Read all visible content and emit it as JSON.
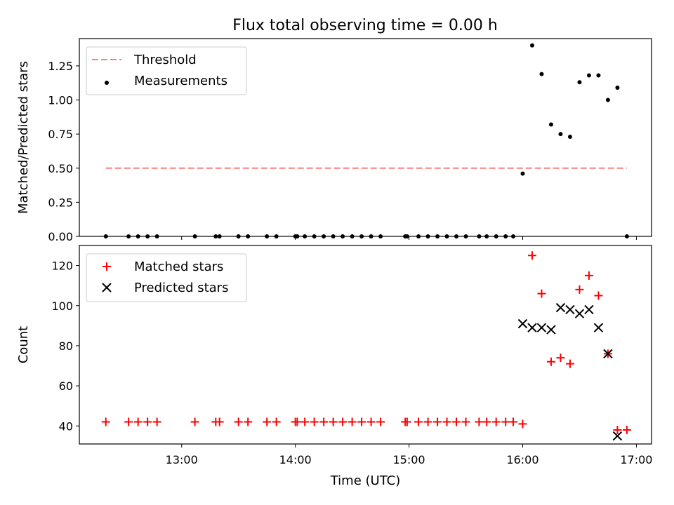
{
  "title": "Flux total observing time = 0.00 h",
  "chart_data": [
    {
      "type": "scatter",
      "ylabel": "Matched/Predicted stars",
      "xlabel": "",
      "ylim": [
        0,
        1.45
      ],
      "xlim": [
        "12:06",
        "17:08"
      ],
      "yticks": [
        "0.00",
        "0.25",
        "0.50",
        "0.75",
        "1.00",
        "1.25"
      ],
      "legend_position": "top-left",
      "threshold": {
        "name": "Threshold",
        "style": "dashed",
        "color": "#ff7f7f",
        "y": 0.5,
        "x_range": [
          "12:20",
          "16:55"
        ]
      },
      "series": [
        {
          "name": "Measurements",
          "marker": "dot",
          "color": "#000000",
          "points": [
            {
              "x": "12:20",
              "y": 0
            },
            {
              "x": "12:32",
              "y": 0
            },
            {
              "x": "12:37",
              "y": 0
            },
            {
              "x": "12:42",
              "y": 0
            },
            {
              "x": "12:47",
              "y": 0
            },
            {
              "x": "13:07",
              "y": 0
            },
            {
              "x": "13:18",
              "y": 0
            },
            {
              "x": "13:20",
              "y": 0
            },
            {
              "x": "13:30",
              "y": 0
            },
            {
              "x": "13:35",
              "y": 0
            },
            {
              "x": "13:45",
              "y": 0
            },
            {
              "x": "13:50",
              "y": 0
            },
            {
              "x": "14:00",
              "y": 0
            },
            {
              "x": "14:01",
              "y": 0
            },
            {
              "x": "14:05",
              "y": 0
            },
            {
              "x": "14:10",
              "y": 0
            },
            {
              "x": "14:15",
              "y": 0
            },
            {
              "x": "14:20",
              "y": 0
            },
            {
              "x": "14:25",
              "y": 0
            },
            {
              "x": "14:30",
              "y": 0
            },
            {
              "x": "14:35",
              "y": 0
            },
            {
              "x": "14:40",
              "y": 0
            },
            {
              "x": "14:45",
              "y": 0
            },
            {
              "x": "14:58",
              "y": 0
            },
            {
              "x": "14:59",
              "y": 0
            },
            {
              "x": "15:05",
              "y": 0
            },
            {
              "x": "15:10",
              "y": 0
            },
            {
              "x": "15:15",
              "y": 0
            },
            {
              "x": "15:20",
              "y": 0
            },
            {
              "x": "15:25",
              "y": 0
            },
            {
              "x": "15:30",
              "y": 0
            },
            {
              "x": "15:37",
              "y": 0
            },
            {
              "x": "15:41",
              "y": 0
            },
            {
              "x": "15:46",
              "y": 0
            },
            {
              "x": "15:51",
              "y": 0
            },
            {
              "x": "15:55",
              "y": 0
            },
            {
              "x": "16:00",
              "y": 0.46
            },
            {
              "x": "16:05",
              "y": 1.4
            },
            {
              "x": "16:10",
              "y": 1.19
            },
            {
              "x": "16:15",
              "y": 0.82
            },
            {
              "x": "16:20",
              "y": 0.75
            },
            {
              "x": "16:25",
              "y": 0.73
            },
            {
              "x": "16:30",
              "y": 1.13
            },
            {
              "x": "16:35",
              "y": 1.18
            },
            {
              "x": "16:40",
              "y": 1.18
            },
            {
              "x": "16:45",
              "y": 1.0
            },
            {
              "x": "16:50",
              "y": 1.09
            },
            {
              "x": "16:55",
              "y": 0
            }
          ]
        }
      ]
    },
    {
      "type": "scatter",
      "ylabel": "Count",
      "xlabel": "Time (UTC)",
      "ylim": [
        31,
        130
      ],
      "xlim": [
        "12:06",
        "17:08"
      ],
      "yticks": [
        "40",
        "60",
        "80",
        "100",
        "120"
      ],
      "xticks": [
        "13:00",
        "14:00",
        "15:00",
        "16:00",
        "17:00"
      ],
      "legend_position": "top-left",
      "series": [
        {
          "name": "Matched stars",
          "marker": "plus",
          "color": "#ff0000",
          "points": [
            {
              "x": "12:20",
              "y": 42
            },
            {
              "x": "12:32",
              "y": 42
            },
            {
              "x": "12:37",
              "y": 42
            },
            {
              "x": "12:42",
              "y": 42
            },
            {
              "x": "12:47",
              "y": 42
            },
            {
              "x": "13:07",
              "y": 42
            },
            {
              "x": "13:18",
              "y": 42
            },
            {
              "x": "13:20",
              "y": 42
            },
            {
              "x": "13:30",
              "y": 42
            },
            {
              "x": "13:35",
              "y": 42
            },
            {
              "x": "13:45",
              "y": 42
            },
            {
              "x": "13:50",
              "y": 42
            },
            {
              "x": "14:00",
              "y": 42
            },
            {
              "x": "14:01",
              "y": 42
            },
            {
              "x": "14:05",
              "y": 42
            },
            {
              "x": "14:10",
              "y": 42
            },
            {
              "x": "14:15",
              "y": 42
            },
            {
              "x": "14:20",
              "y": 42
            },
            {
              "x": "14:25",
              "y": 42
            },
            {
              "x": "14:30",
              "y": 42
            },
            {
              "x": "14:35",
              "y": 42
            },
            {
              "x": "14:40",
              "y": 42
            },
            {
              "x": "14:45",
              "y": 42
            },
            {
              "x": "14:58",
              "y": 42
            },
            {
              "x": "14:59",
              "y": 42
            },
            {
              "x": "15:05",
              "y": 42
            },
            {
              "x": "15:10",
              "y": 42
            },
            {
              "x": "15:15",
              "y": 42
            },
            {
              "x": "15:20",
              "y": 42
            },
            {
              "x": "15:25",
              "y": 42
            },
            {
              "x": "15:30",
              "y": 42
            },
            {
              "x": "15:37",
              "y": 42
            },
            {
              "x": "15:41",
              "y": 42
            },
            {
              "x": "15:46",
              "y": 42
            },
            {
              "x": "15:51",
              "y": 42
            },
            {
              "x": "15:55",
              "y": 42
            },
            {
              "x": "16:00",
              "y": 41
            },
            {
              "x": "16:05",
              "y": 125
            },
            {
              "x": "16:10",
              "y": 106
            },
            {
              "x": "16:15",
              "y": 72
            },
            {
              "x": "16:20",
              "y": 74
            },
            {
              "x": "16:25",
              "y": 71
            },
            {
              "x": "16:30",
              "y": 108
            },
            {
              "x": "16:35",
              "y": 115
            },
            {
              "x": "16:40",
              "y": 105
            },
            {
              "x": "16:45",
              "y": 76
            },
            {
              "x": "16:50",
              "y": 38
            },
            {
              "x": "16:55",
              "y": 38
            }
          ]
        },
        {
          "name": "Predicted stars",
          "marker": "x",
          "color": "#000000",
          "points": [
            {
              "x": "16:00",
              "y": 91
            },
            {
              "x": "16:05",
              "y": 89
            },
            {
              "x": "16:10",
              "y": 89
            },
            {
              "x": "16:15",
              "y": 88
            },
            {
              "x": "16:20",
              "y": 99
            },
            {
              "x": "16:25",
              "y": 98
            },
            {
              "x": "16:30",
              "y": 96
            },
            {
              "x": "16:35",
              "y": 98
            },
            {
              "x": "16:40",
              "y": 89
            },
            {
              "x": "16:45",
              "y": 76
            },
            {
              "x": "16:50",
              "y": 35
            }
          ]
        }
      ]
    }
  ]
}
